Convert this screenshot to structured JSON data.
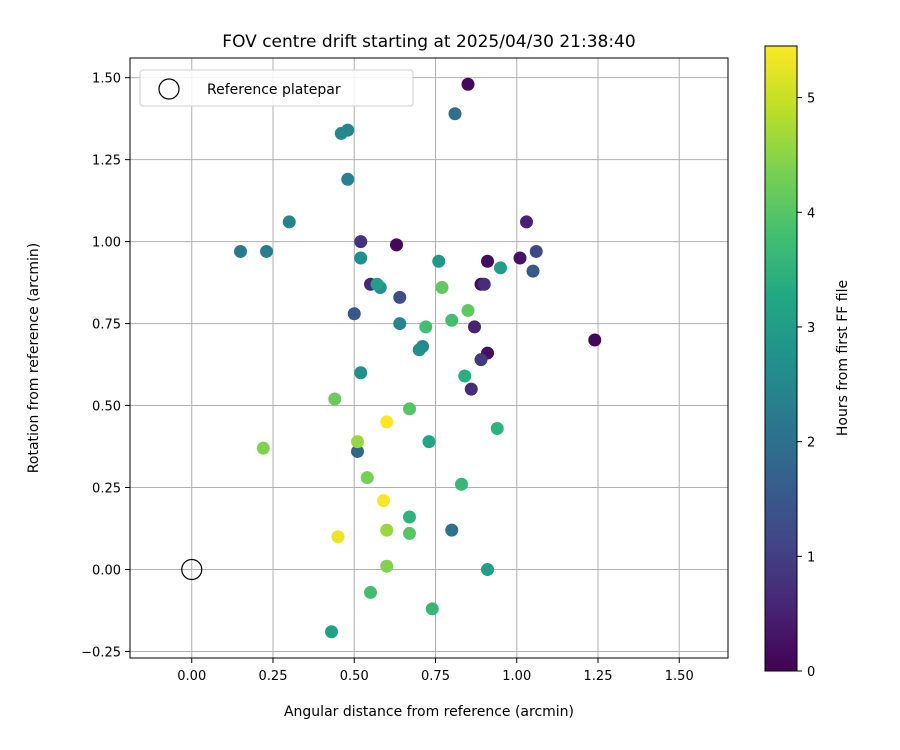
{
  "chart_data": {
    "type": "scatter",
    "title": "FOV centre drift starting at 2025/04/30 21:38:40",
    "xlabel": "Angular distance from reference (arcmin)",
    "ylabel": "Rotation from reference (arcmin)",
    "xlim": [
      -0.19,
      1.65
    ],
    "ylim": [
      -0.27,
      1.56
    ],
    "xticks": [
      0.0,
      0.25,
      0.5,
      0.75,
      1.0,
      1.25,
      1.5
    ],
    "yticks": [
      -0.25,
      0.0,
      0.25,
      0.5,
      0.75,
      1.0,
      1.25,
      1.5
    ],
    "xtick_labels": [
      "0.00",
      "0.25",
      "0.50",
      "0.75",
      "1.00",
      "1.25",
      "1.50"
    ],
    "ytick_labels": [
      "−0.25",
      "0.00",
      "0.25",
      "0.50",
      "0.75",
      "1.00",
      "1.25",
      "1.50"
    ],
    "grid": true,
    "legend": {
      "position": "top-left",
      "entries": [
        {
          "label": "Reference platepar",
          "marker": "open-circle"
        }
      ]
    },
    "reference_point": {
      "x": 0.0,
      "y": 0.0
    },
    "colorbar": {
      "label": "Hours from first FF file",
      "colormap": "viridis",
      "range": [
        0,
        5.45
      ],
      "ticks": [
        0,
        1,
        2,
        3,
        4,
        5
      ],
      "tick_labels": [
        "0",
        "1",
        "2",
        "3",
        "4",
        "5"
      ]
    },
    "points": [
      {
        "x": 0.85,
        "y": 1.48,
        "c": 0.1
      },
      {
        "x": 1.24,
        "y": 0.7,
        "c": 0.1
      },
      {
        "x": 0.63,
        "y": 0.99,
        "c": 0.1
      },
      {
        "x": 0.91,
        "y": 0.94,
        "c": 0.15
      },
      {
        "x": 0.89,
        "y": 0.87,
        "c": 0.2
      },
      {
        "x": 0.91,
        "y": 0.66,
        "c": 0.2
      },
      {
        "x": 1.01,
        "y": 0.95,
        "c": 0.3
      },
      {
        "x": 1.03,
        "y": 1.06,
        "c": 0.5
      },
      {
        "x": 0.87,
        "y": 0.74,
        "c": 0.5
      },
      {
        "x": 0.55,
        "y": 0.87,
        "c": 0.6
      },
      {
        "x": 0.9,
        "y": 0.87,
        "c": 0.7
      },
      {
        "x": 0.86,
        "y": 0.55,
        "c": 0.7
      },
      {
        "x": 0.52,
        "y": 1.0,
        "c": 0.8
      },
      {
        "x": 0.89,
        "y": 0.64,
        "c": 0.9
      },
      {
        "x": 1.06,
        "y": 0.97,
        "c": 1.2
      },
      {
        "x": 0.64,
        "y": 0.83,
        "c": 1.3
      },
      {
        "x": 0.5,
        "y": 0.78,
        "c": 1.5
      },
      {
        "x": 1.05,
        "y": 0.91,
        "c": 1.5
      },
      {
        "x": 0.51,
        "y": 0.36,
        "c": 1.8
      },
      {
        "x": 0.81,
        "y": 1.39,
        "c": 2.0
      },
      {
        "x": 0.8,
        "y": 0.12,
        "c": 2.0
      },
      {
        "x": 0.15,
        "y": 0.97,
        "c": 2.2
      },
      {
        "x": 0.23,
        "y": 0.97,
        "c": 2.3
      },
      {
        "x": 0.3,
        "y": 1.06,
        "c": 2.4
      },
      {
        "x": 0.48,
        "y": 1.19,
        "c": 2.4
      },
      {
        "x": 0.46,
        "y": 1.33,
        "c": 2.5
      },
      {
        "x": 0.48,
        "y": 1.34,
        "c": 2.5
      },
      {
        "x": 0.64,
        "y": 0.75,
        "c": 2.5
      },
      {
        "x": 0.71,
        "y": 0.68,
        "c": 2.5
      },
      {
        "x": 0.52,
        "y": 0.95,
        "c": 2.7
      },
      {
        "x": 0.52,
        "y": 0.6,
        "c": 2.7
      },
      {
        "x": 0.58,
        "y": 0.86,
        "c": 2.7
      },
      {
        "x": 0.7,
        "y": 0.67,
        "c": 2.7
      },
      {
        "x": 0.76,
        "y": 0.94,
        "c": 2.9
      },
      {
        "x": 0.95,
        "y": 0.92,
        "c": 3.0
      },
      {
        "x": 0.57,
        "y": 0.87,
        "c": 3.0
      },
      {
        "x": 0.91,
        "y": 0.0,
        "c": 3.0
      },
      {
        "x": 0.43,
        "y": -0.19,
        "c": 3.1
      },
      {
        "x": 0.73,
        "y": 0.39,
        "c": 3.2
      },
      {
        "x": 0.84,
        "y": 0.59,
        "c": 3.4
      },
      {
        "x": 0.94,
        "y": 0.43,
        "c": 3.5
      },
      {
        "x": 0.67,
        "y": 0.16,
        "c": 3.5
      },
      {
        "x": 0.83,
        "y": 0.26,
        "c": 3.6
      },
      {
        "x": 0.74,
        "y": -0.12,
        "c": 3.6
      },
      {
        "x": 0.55,
        "y": -0.07,
        "c": 3.8
      },
      {
        "x": 0.72,
        "y": 0.74,
        "c": 3.8
      },
      {
        "x": 0.8,
        "y": 0.76,
        "c": 3.8
      },
      {
        "x": 0.67,
        "y": 0.49,
        "c": 4.0
      },
      {
        "x": 0.67,
        "y": 0.11,
        "c": 4.0
      },
      {
        "x": 0.85,
        "y": 0.79,
        "c": 4.1
      },
      {
        "x": 0.77,
        "y": 0.86,
        "c": 4.1
      },
      {
        "x": 0.44,
        "y": 0.52,
        "c": 4.2
      },
      {
        "x": 0.54,
        "y": 0.28,
        "c": 4.3
      },
      {
        "x": 0.6,
        "y": 0.01,
        "c": 4.4
      },
      {
        "x": 0.22,
        "y": 0.37,
        "c": 4.4
      },
      {
        "x": 0.51,
        "y": 0.39,
        "c": 4.6
      },
      {
        "x": 0.6,
        "y": 0.12,
        "c": 4.6
      },
      {
        "x": 0.45,
        "y": 0.1,
        "c": 5.3
      },
      {
        "x": 0.59,
        "y": 0.21,
        "c": 5.4
      },
      {
        "x": 0.6,
        "y": 0.45,
        "c": 5.45
      }
    ]
  }
}
